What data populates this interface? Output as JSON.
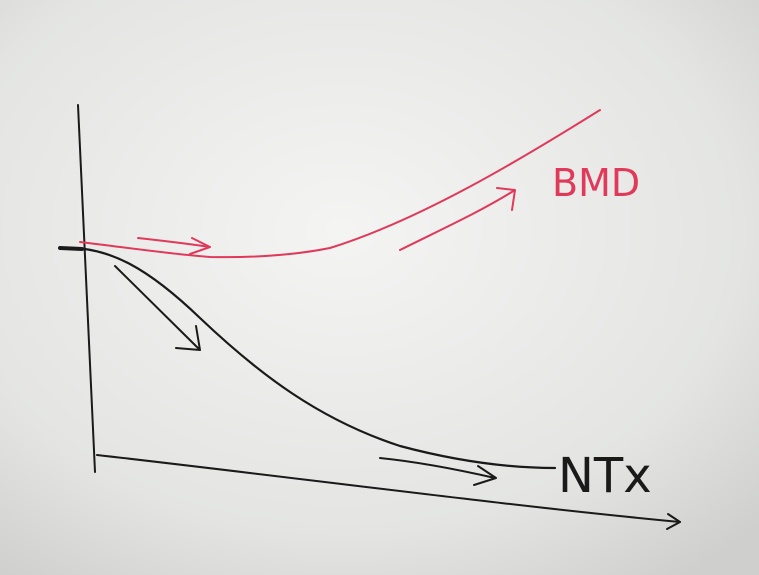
{
  "labels": {
    "bmd": "BMD",
    "ntx": "NTx"
  }
}
